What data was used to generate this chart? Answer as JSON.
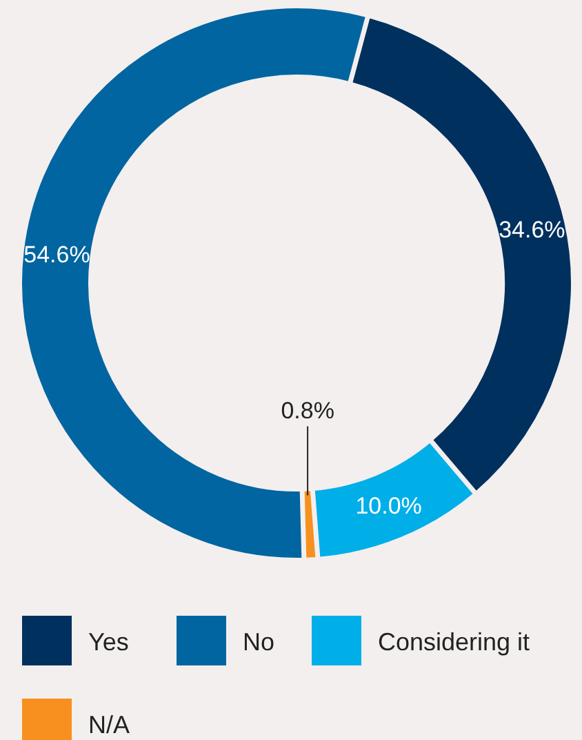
{
  "chart_data": {
    "type": "donut",
    "categories": [
      "Yes",
      "Considering it",
      "N/A",
      "No"
    ],
    "values": [
      34.6,
      10.0,
      0.8,
      54.6
    ],
    "colors": [
      "#00305e",
      "#00aee8",
      "#f7901e",
      "#0065a0"
    ],
    "value_labels": [
      "34.6%",
      "10.0%",
      "0.8%",
      "54.6%"
    ],
    "legend": "bottom"
  }
}
